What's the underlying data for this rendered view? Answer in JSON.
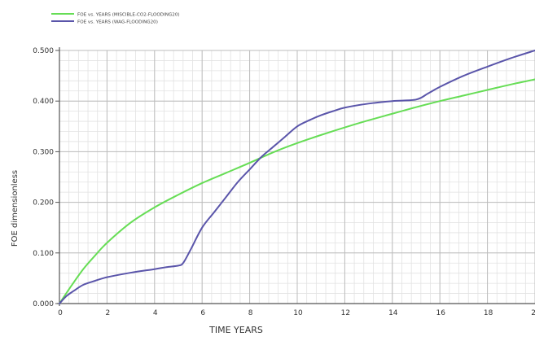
{
  "chart_data": {
    "type": "line",
    "xlabel": "TIME  YEARS",
    "ylabel": "FOE  dimensionless",
    "xlim": [
      0,
      20
    ],
    "ylim": [
      0,
      0.5
    ],
    "x_ticks": [
      0,
      2,
      4,
      6,
      8,
      10,
      12,
      14,
      16,
      18,
      20
    ],
    "x_tick_labels": [
      "0",
      "2",
      "4",
      "6",
      "8",
      "10",
      "12",
      "14",
      "16",
      "18",
      "20"
    ],
    "y_ticks": [
      0,
      0.1,
      0.2,
      0.3,
      0.4,
      0.5
    ],
    "y_tick_labels": [
      "0.000",
      "0.100",
      "0.200",
      "0.300",
      "0.400",
      "0.500"
    ],
    "grid": true,
    "legend_position": "top-left",
    "series": [
      {
        "name": "FOE  vs.  YEARS (MISCIBLE-CO2-FLOODING20)",
        "color": "#66dd55",
        "x": [
          0,
          0.5,
          1,
          1.5,
          2,
          3,
          4,
          5,
          6,
          7,
          8,
          9,
          10,
          11,
          12,
          13,
          14,
          15,
          16,
          17,
          18,
          19,
          20
        ],
        "y": [
          0,
          0.035,
          0.068,
          0.095,
          0.12,
          0.16,
          0.19,
          0.215,
          0.238,
          0.258,
          0.278,
          0.299,
          0.317,
          0.333,
          0.348,
          0.362,
          0.375,
          0.388,
          0.4,
          0.411,
          0.422,
          0.433,
          0.443
        ]
      },
      {
        "name": "FOE  vs.  YEARS (WAG-FLOODING20)",
        "color": "#5a55aa",
        "x": [
          0,
          0.3,
          0.6,
          1,
          1.5,
          2,
          3,
          4,
          4.5,
          5,
          5.2,
          5.5,
          6,
          6.5,
          7,
          7.5,
          8,
          8.5,
          9,
          9.5,
          10,
          10.5,
          11,
          11.5,
          12,
          13,
          14,
          15,
          15.5,
          16,
          17,
          18,
          19,
          20
        ],
        "y": [
          0,
          0.015,
          0.025,
          0.037,
          0.045,
          0.052,
          0.061,
          0.068,
          0.072,
          0.075,
          0.08,
          0.105,
          0.15,
          0.18,
          0.21,
          0.24,
          0.265,
          0.29,
          0.31,
          0.33,
          0.35,
          0.362,
          0.372,
          0.38,
          0.387,
          0.395,
          0.4,
          0.403,
          0.415,
          0.428,
          0.45,
          0.468,
          0.485,
          0.5
        ]
      }
    ]
  }
}
